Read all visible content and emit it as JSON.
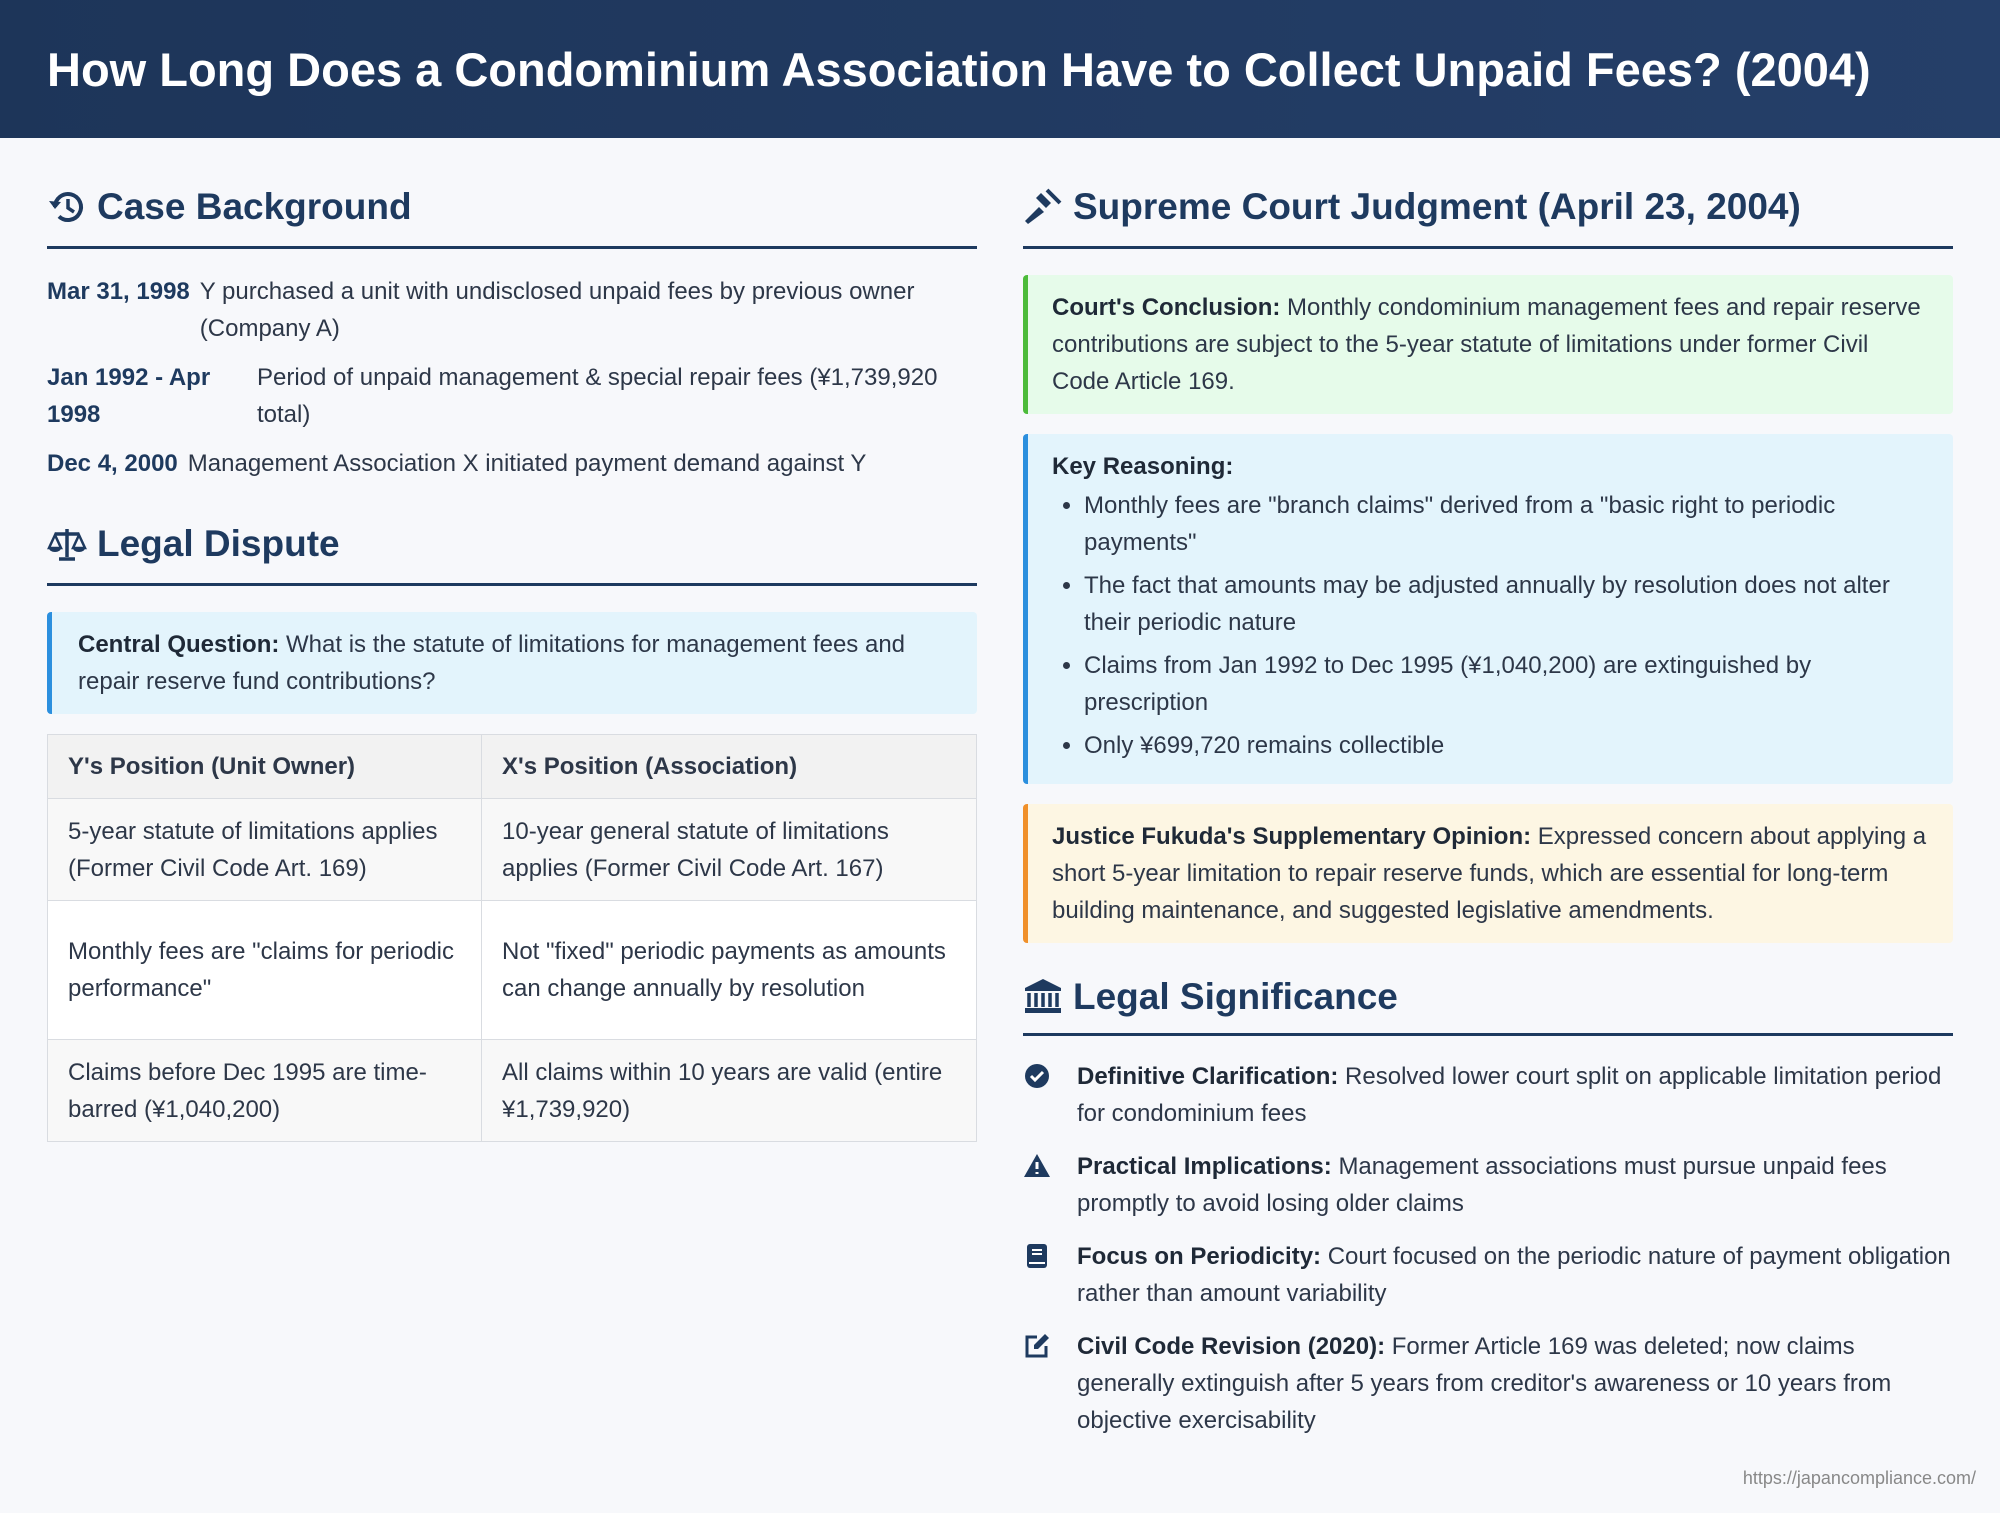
{
  "header": {
    "title": "How Long Does a Condominium Association Have to Collect Unpaid Fees? (2004)"
  },
  "background": {
    "heading": "Case Background",
    "timeline": [
      {
        "date": "Mar 31, 1998",
        "text": "Y purchased a unit with undisclosed unpaid fees by previous owner (Company A)"
      },
      {
        "date": "Jan 1992 - Apr 1998",
        "text": "Period of unpaid management & special repair fees (¥1,739,920 total)"
      },
      {
        "date": "Dec 4, 2000",
        "text": "Management Association X initiated payment demand against Y"
      }
    ]
  },
  "dispute": {
    "heading": "Legal Dispute",
    "question": {
      "label": "Central Question:",
      "text": "What is the statute of limitations for management fees and repair reserve fund contributions?"
    },
    "table": {
      "columns": [
        "Y's Position (Unit Owner)",
        "X's Position (Association)"
      ],
      "rows": [
        [
          "5-year statute of limitations applies (Former Civil Code Art. 169)",
          "10-year general statute of limitations applies (Former Civil Code Art. 167)"
        ],
        [
          "Monthly fees are \"claims for periodic performance\"",
          "Not \"fixed\" periodic payments as amounts can change annually by resolution"
        ],
        [
          "Claims before Dec 1995 are time-barred (¥1,040,200)",
          "All claims within 10 years are valid (entire ¥1,739,920)"
        ]
      ]
    }
  },
  "judgment": {
    "heading": "Supreme Court Judgment (April 23, 2004)",
    "conclusion": {
      "label": "Court's Conclusion:",
      "text": "Monthly condominium management fees and repair reserve contributions are subject to the 5-year statute of limitations under former Civil Code Article 169."
    },
    "reasoning": {
      "label": "Key Reasoning:",
      "items": [
        "Monthly fees are \"branch claims\" derived from a \"basic right to periodic payments\"",
        "The fact that amounts may be adjusted annually by resolution does not alter their periodic nature",
        "Claims from Jan 1992 to Dec 1995 (¥1,040,200) are extinguished by prescription",
        "Only ¥699,720 remains collectible"
      ]
    },
    "opinion": {
      "label": "Justice Fukuda's Supplementary Opinion:",
      "text": "Expressed concern about applying a short 5-year limitation to repair reserve funds, which are essential for long-term building maintenance, and suggested legislative amendments."
    }
  },
  "significance": {
    "heading": "Legal Significance",
    "items": [
      {
        "label": "Definitive Clarification:",
        "text": "Resolved lower court split on applicable limitation period for condominium fees"
      },
      {
        "label": "Practical Implications:",
        "text": "Management associations must pursue unpaid fees promptly to avoid losing older claims"
      },
      {
        "label": "Focus on Periodicity:",
        "text": "Court focused on the periodic nature of payment obligation rather than amount variability"
      },
      {
        "label": "Civil Code Revision (2020):",
        "text": "Former Article 169 was deleted; now claims generally extinguish after 5 years from creditor's awareness or 10 years from objective exercisability"
      }
    ]
  },
  "footer": {
    "url": "https://japancompliance.com/"
  }
}
